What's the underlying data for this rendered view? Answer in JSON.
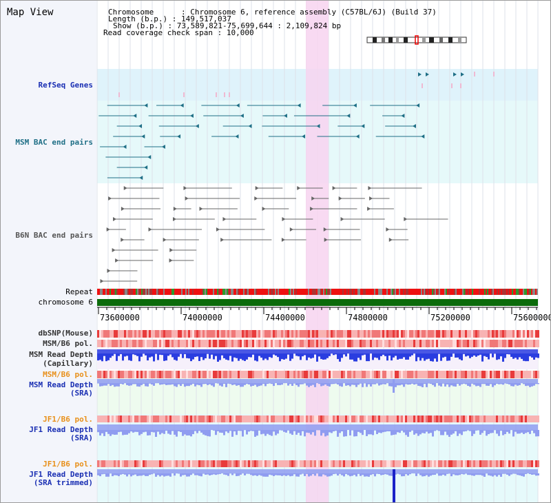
{
  "title": "Map View",
  "info": {
    "chromosome_key": "Chromosome",
    "chromosome_val": "Chromosome 6, reference assembly (C57BL/6J) (Build 37)",
    "length_key": "Length (b.p.)",
    "length_val": "149,517,037",
    "show_key": "Show (b.p.)",
    "show_val": "73,589,821-75,699,644 : 2,109,824 bp",
    "span_key": "Read coverage check span",
    "span_val": "10,000"
  },
  "tracks": {
    "refseq": "RefSeq Genes",
    "msm_bac": "MSM BAC end pairs",
    "b6n_bac": "B6N BAC end pairs",
    "repeat": "Repeat",
    "chromosome": "chromosome 6",
    "dbsnp": "dbSNP(Mouse)",
    "msm_pol": "MSM/B6 pol.",
    "msm_depth_cap_1": "MSM Read Depth",
    "msm_depth_cap_2": "(Capillary)",
    "msm_pol2": "MSM/B6 pol.",
    "msm_depth_sra_1": "MSM Read Depth",
    "msm_depth_sra_2": "(SRA)",
    "jf1_pol": "JF1/B6 pol.",
    "jf1_depth_sra_1": "JF1 Read Depth",
    "jf1_depth_sra_2": "(SRA)",
    "jf1_pol2": "JF1/B6 pol.",
    "jf1_depth_trim_1": "JF1 Read Depth",
    "jf1_depth_trim_2": "(SRA trimmed)"
  },
  "axis": {
    "ticks": [
      "73600000",
      "74000000",
      "74400000",
      "74800000",
      "75200000",
      "75600000"
    ]
  },
  "colors": {
    "refseq_bg": "#dff3fb",
    "msm_bg": "#e6f9fa",
    "highlight": "#f7d3f0",
    "chromosome": "#0b6b0b",
    "depth_capillary": "#2a3de0",
    "depth_sra": "#8f9cf0",
    "msm_line": "#1f6f86",
    "b6n_line": "#666666"
  }
}
